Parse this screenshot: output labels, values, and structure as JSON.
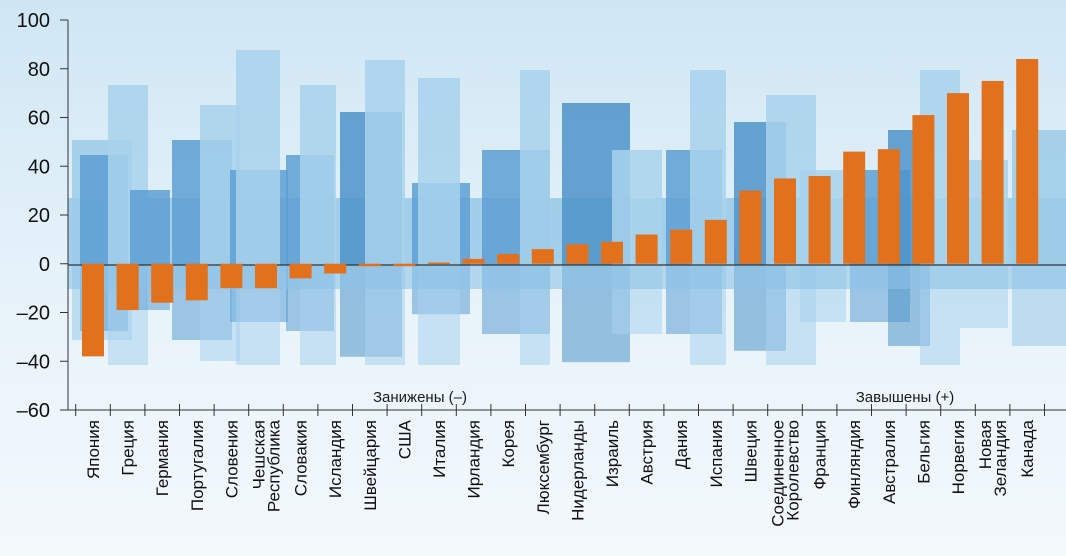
{
  "chart_data": {
    "type": "bar",
    "title": "",
    "xlabel": "",
    "ylabel": "",
    "ylim": [
      -60,
      100
    ],
    "yticks": [
      100,
      80,
      60,
      40,
      20,
      0,
      -20,
      -40,
      -60
    ],
    "ytick_labels": [
      "100",
      "80",
      "60",
      "40",
      "20",
      "0",
      "–20",
      "–40",
      "–60"
    ],
    "grid": false,
    "bar_color": "#e2711d",
    "categories": [
      "Япония",
      "Греция",
      "Германия",
      "Португалия",
      "Словения",
      "Чешская Республика",
      "Словакия",
      "Исландия",
      "Швейцария",
      "США",
      "Италия",
      "Ирландия",
      "Корея",
      "Люксембург",
      "Нидерланды",
      "Израиль",
      "Австрия",
      "Дания",
      "Испания",
      "Швеция",
      "Соединенное Королевство",
      "Франция",
      "Финляндия",
      "Австралия",
      "Бельгия",
      "Норвегия",
      "Новая Зеландия",
      "Канада"
    ],
    "category_lines": [
      [
        "Япония"
      ],
      [
        "Греция"
      ],
      [
        "Германия"
      ],
      [
        "Португалия"
      ],
      [
        "Словения"
      ],
      [
        "Чешская",
        "Республика"
      ],
      [
        "Словакия"
      ],
      [
        "Исландия"
      ],
      [
        "Швейцария"
      ],
      [
        "США"
      ],
      [
        "Италия"
      ],
      [
        "Ирландия"
      ],
      [
        "Корея"
      ],
      [
        "Люксембург"
      ],
      [
        "Нидерланды"
      ],
      [
        "Израиль"
      ],
      [
        "Австрия"
      ],
      [
        "Дания"
      ],
      [
        "Испания"
      ],
      [
        "Швеция"
      ],
      [
        "Соединенное",
        "Королевство"
      ],
      [
        "Франция"
      ],
      [
        "Финляндия"
      ],
      [
        "Австралия"
      ],
      [
        "Бельгия"
      ],
      [
        "Норвегия"
      ],
      [
        "Новая",
        "Зеландия"
      ],
      [
        "Канада"
      ]
    ],
    "values": [
      -38,
      -19,
      -16,
      -15,
      -10,
      -10,
      -6,
      -4,
      -1,
      -1,
      0.5,
      2,
      4,
      6,
      8,
      9,
      12,
      14,
      18,
      30,
      35,
      36,
      46,
      47,
      61,
      70,
      75,
      84
    ],
    "annotations": [
      {
        "text": "Занижены (–)",
        "value": -55
      },
      {
        "text": "Завышены (+)",
        "value": -55
      }
    ]
  }
}
